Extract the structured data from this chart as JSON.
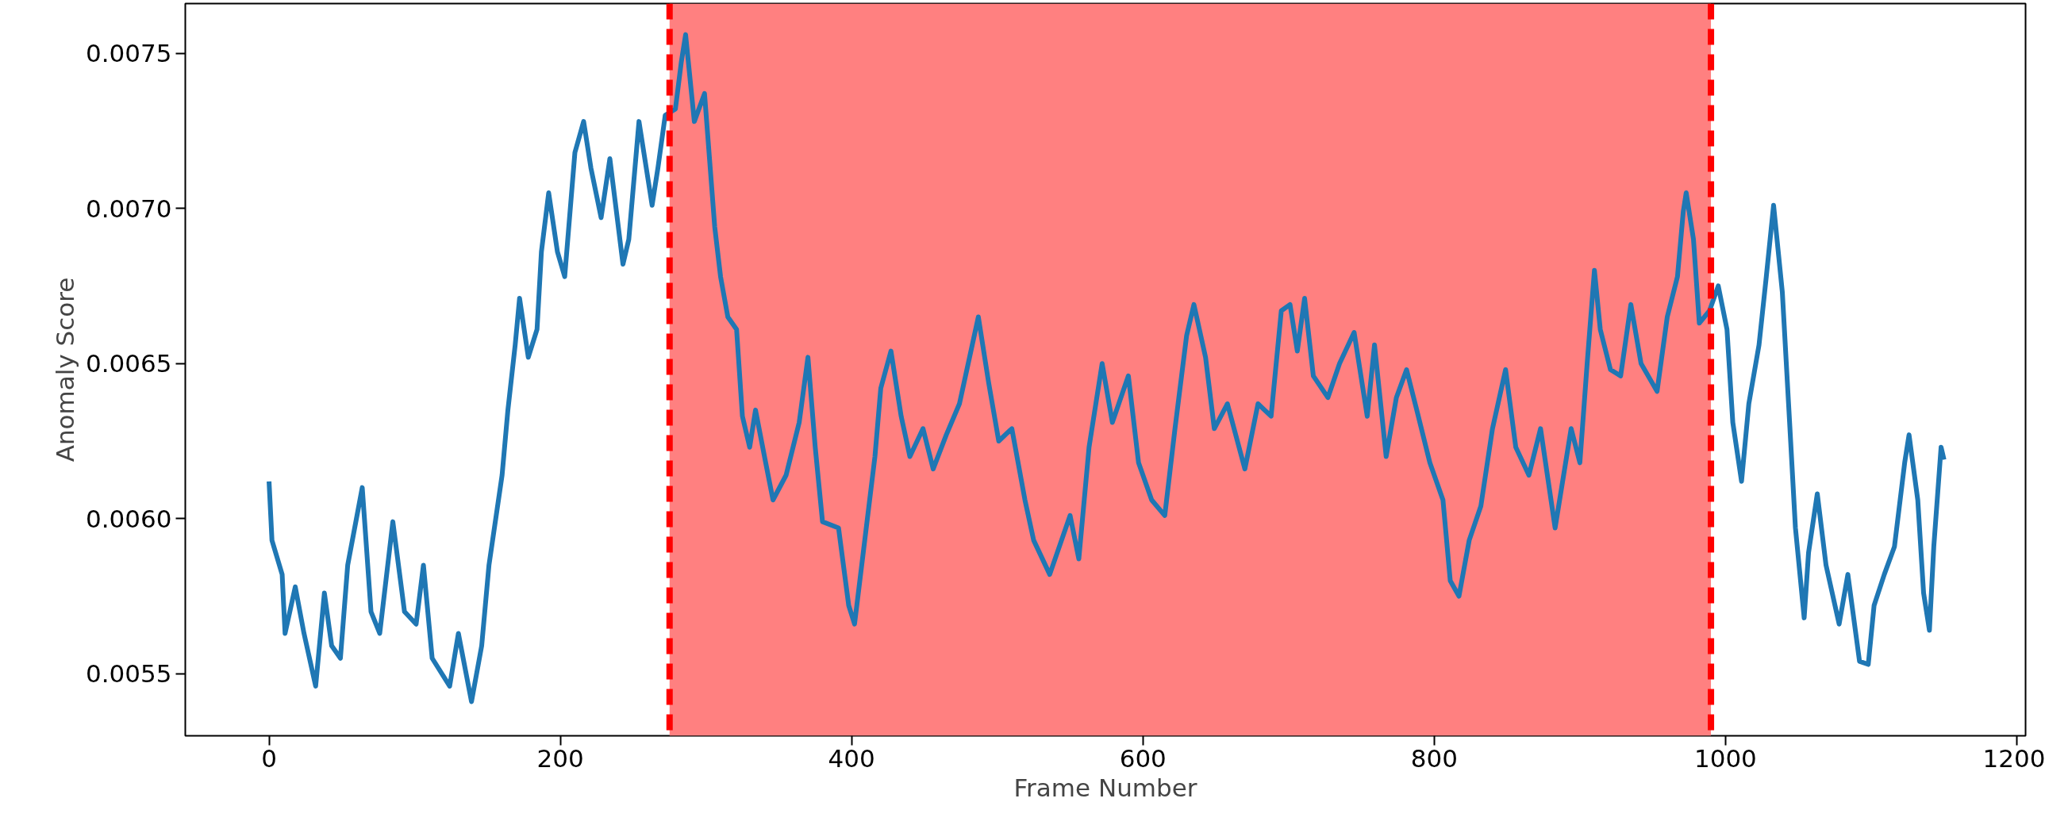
{
  "chart_data": {
    "type": "line",
    "xlabel": "Frame Number",
    "ylabel": "Anomaly Score",
    "xlim": [
      -57.5,
      1206
    ],
    "ylim": [
      0.0053,
      0.00766
    ],
    "xticks": [
      0,
      200,
      400,
      600,
      800,
      1000,
      1200
    ],
    "yticks": [
      {
        "value": 0.0055,
        "label": "0.0055"
      },
      {
        "value": 0.006,
        "label": "0.0060"
      },
      {
        "value": 0.0065,
        "label": "0.0065"
      },
      {
        "value": 0.007,
        "label": "0.0070"
      },
      {
        "value": 0.0075,
        "label": "0.0075"
      }
    ],
    "bands": [
      {
        "axis": "x",
        "from": 275,
        "to": 990,
        "color": "#ff8080"
      }
    ],
    "ref_lines": [
      {
        "axis": "x",
        "value": 275,
        "color": "#ff0000",
        "line_style": "dashed"
      },
      {
        "axis": "x",
        "value": 990,
        "color": "#ff0000",
        "line_style": "dashed"
      }
    ],
    "series": [
      {
        "color": "#1f77b4",
        "line_style": "solid",
        "x": [
          0,
          2,
          9,
          11,
          18,
          24,
          32,
          38,
          43,
          49,
          54,
          64,
          70,
          76,
          85,
          93,
          101,
          106,
          112,
          124,
          130,
          139,
          146,
          151,
          160,
          164,
          169,
          172,
          178,
          184,
          187,
          192,
          198,
          203,
          210,
          216,
          221,
          228,
          234,
          243,
          247,
          254,
          263,
          267,
          272,
          279,
          283,
          286,
          292,
          299,
          306,
          310,
          315,
          321,
          325,
          330,
          334,
          341,
          346,
          355,
          364,
          370,
          375,
          380,
          391,
          398,
          402,
          409,
          416,
          420,
          427,
          434,
          440,
          449,
          456,
          465,
          474,
          487,
          494,
          501,
          510,
          519,
          525,
          536,
          550,
          556,
          563,
          572,
          579,
          590,
          597,
          606,
          615,
          622,
          630,
          635,
          643,
          649,
          658,
          670,
          679,
          688,
          695,
          701,
          706,
          711,
          717,
          727,
          735,
          745,
          754,
          759,
          767,
          774,
          781,
          788,
          797,
          806,
          811,
          817,
          824,
          832,
          840,
          849,
          856,
          865,
          873,
          883,
          894,
          900,
          905,
          910,
          914,
          921,
          928,
          935,
          942,
          953,
          960,
          967,
          971,
          973,
          978,
          982,
          989,
          995,
          1001,
          1005,
          1011,
          1016,
          1023,
          1028,
          1033,
          1039,
          1044,
          1048,
          1054,
          1057,
          1063,
          1069,
          1078,
          1084,
          1092,
          1098,
          1102,
          1109,
          1116,
          1123,
          1126,
          1132,
          1136,
          1140,
          1143,
          1148,
          1150
        ],
        "values": [
          0.00612,
          0.00593,
          0.00582,
          0.00563,
          0.00578,
          0.00563,
          0.00546,
          0.00576,
          0.00559,
          0.00555,
          0.00585,
          0.0061,
          0.0057,
          0.00563,
          0.00599,
          0.0057,
          0.00566,
          0.00585,
          0.00555,
          0.00546,
          0.00563,
          0.00541,
          0.00559,
          0.00585,
          0.00614,
          0.00635,
          0.00656,
          0.00671,
          0.00652,
          0.00661,
          0.00686,
          0.00705,
          0.00686,
          0.00678,
          0.00718,
          0.00728,
          0.00713,
          0.00697,
          0.00716,
          0.00682,
          0.0069,
          0.00728,
          0.00701,
          0.00713,
          0.0073,
          0.00732,
          0.00747,
          0.00756,
          0.00728,
          0.00737,
          0.00694,
          0.00678,
          0.00665,
          0.00661,
          0.00633,
          0.00623,
          0.00635,
          0.00618,
          0.00606,
          0.00614,
          0.00631,
          0.00652,
          0.00623,
          0.00599,
          0.00597,
          0.00572,
          0.00566,
          0.00593,
          0.0062,
          0.00642,
          0.00654,
          0.00633,
          0.0062,
          0.00629,
          0.00616,
          0.00627,
          0.00637,
          0.00665,
          0.00644,
          0.00625,
          0.00629,
          0.00606,
          0.00593,
          0.00582,
          0.00601,
          0.00587,
          0.00623,
          0.0065,
          0.00631,
          0.00646,
          0.00618,
          0.00606,
          0.00601,
          0.00629,
          0.00659,
          0.00669,
          0.00652,
          0.00629,
          0.00637,
          0.00616,
          0.00637,
          0.00633,
          0.00667,
          0.00669,
          0.00654,
          0.00671,
          0.00646,
          0.00639,
          0.0065,
          0.0066,
          0.00633,
          0.00656,
          0.0062,
          0.00639,
          0.00648,
          0.00635,
          0.00618,
          0.00606,
          0.0058,
          0.00575,
          0.00593,
          0.00604,
          0.00629,
          0.00648,
          0.00623,
          0.00614,
          0.00629,
          0.00597,
          0.00629,
          0.00618,
          0.0065,
          0.0068,
          0.00661,
          0.00648,
          0.00646,
          0.00669,
          0.0065,
          0.00641,
          0.00665,
          0.00678,
          0.00699,
          0.00705,
          0.0069,
          0.00663,
          0.00667,
          0.00675,
          0.00661,
          0.00631,
          0.00612,
          0.00637,
          0.00656,
          0.00678,
          0.00701,
          0.00673,
          0.00631,
          0.00597,
          0.00568,
          0.00589,
          0.00608,
          0.00585,
          0.00566,
          0.00582,
          0.00554,
          0.00553,
          0.00572,
          0.00582,
          0.00591,
          0.00618,
          0.00627,
          0.00606,
          0.00576,
          0.00564,
          0.00591,
          0.00623,
          0.00619
        ]
      }
    ]
  }
}
